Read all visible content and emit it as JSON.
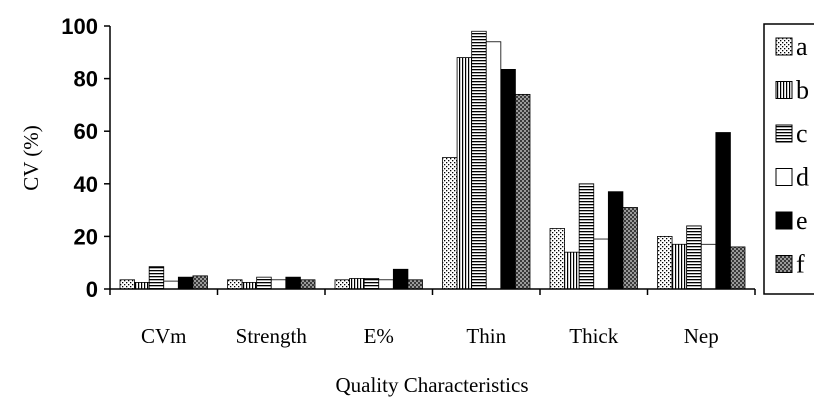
{
  "chart_data": {
    "type": "bar",
    "xlabel": "Quality Characteristics",
    "ylabel": "CV (%)",
    "ylim": [
      0,
      100
    ],
    "yticks": [
      "0",
      "20",
      "40",
      "60",
      "80",
      "100"
    ],
    "categories": [
      "CVm",
      "Strength",
      "E%",
      "Thin",
      "Thick",
      "Nep"
    ],
    "series": [
      {
        "name": "a",
        "values": [
          3.5,
          3.5,
          3.5,
          50,
          23,
          20
        ],
        "pattern": "dots"
      },
      {
        "name": "b",
        "values": [
          2.5,
          2.5,
          4,
          88,
          14,
          17
        ],
        "pattern": "vlines"
      },
      {
        "name": "c",
        "values": [
          8.5,
          4.5,
          4,
          98,
          40,
          24
        ],
        "pattern": "hlines"
      },
      {
        "name": "d",
        "values": [
          3,
          3.5,
          3.5,
          94,
          19,
          17
        ],
        "pattern": "white"
      },
      {
        "name": "e",
        "values": [
          4.5,
          4.5,
          7.5,
          83.5,
          37,
          59.5
        ],
        "pattern": "black"
      },
      {
        "name": "f",
        "values": [
          5,
          3.5,
          3.5,
          74,
          31,
          16
        ],
        "pattern": "checker"
      }
    ],
    "grid": false,
    "legend_position": "right"
  }
}
